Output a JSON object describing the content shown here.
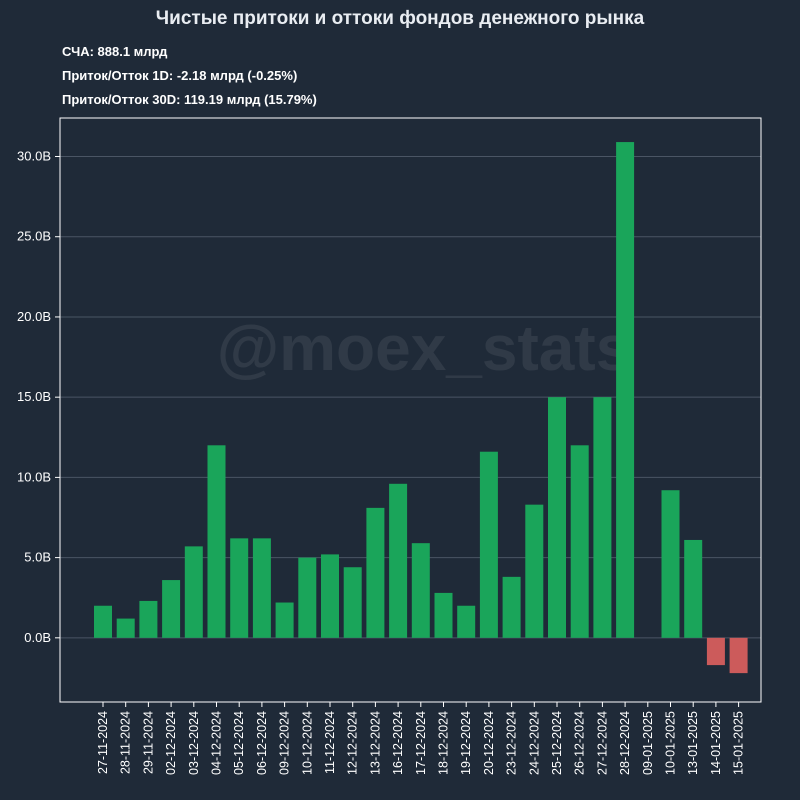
{
  "header": {
    "title": "Чистые притоки и оттоки фондов денежного рынка",
    "stats": [
      "СЧА: 888.1 млрд",
      "Приток/Отток 1D: -2.18 млрд (-0.25%)",
      "Приток/Отток 30D: 119.19 млрд (15.79%)"
    ]
  },
  "watermark": "@moex_stats",
  "colors": {
    "background": "#1f2a38",
    "positive": "#1aa55a",
    "negative": "#cc5b5b",
    "grid": "#4a5564",
    "text": "#ffffff"
  },
  "chart_data": {
    "type": "bar",
    "ylim": [
      -4,
      32.4
    ],
    "yticks": [
      0,
      5,
      10,
      15,
      20,
      25,
      30
    ],
    "ytick_labels": [
      "0.0B",
      "5.0B",
      "10.0B",
      "15.0B",
      "20.0B",
      "25.0B",
      "30.0B"
    ],
    "grid": true,
    "categories": [
      "27-11-2024",
      "28-11-2024",
      "29-11-2024",
      "02-12-2024",
      "03-12-2024",
      "04-12-2024",
      "05-12-2024",
      "06-12-2024",
      "09-12-2024",
      "10-12-2024",
      "11-12-2024",
      "12-12-2024",
      "13-12-2024",
      "16-12-2024",
      "17-12-2024",
      "18-12-2024",
      "19-12-2024",
      "20-12-2024",
      "23-12-2024",
      "24-12-2024",
      "25-12-2024",
      "26-12-2024",
      "27-12-2024",
      "28-12-2024",
      "09-01-2025",
      "10-01-2025",
      "13-01-2025",
      "14-01-2025",
      "15-01-2025"
    ],
    "values": [
      2.0,
      1.2,
      2.3,
      3.6,
      5.7,
      12.0,
      6.2,
      6.2,
      2.2,
      5.0,
      5.2,
      4.4,
      8.1,
      9.6,
      5.9,
      2.8,
      2.0,
      11.6,
      3.8,
      8.3,
      15.0,
      12.0,
      15.0,
      30.9,
      0.0,
      9.2,
      6.1,
      -1.7,
      -2.2
    ]
  }
}
